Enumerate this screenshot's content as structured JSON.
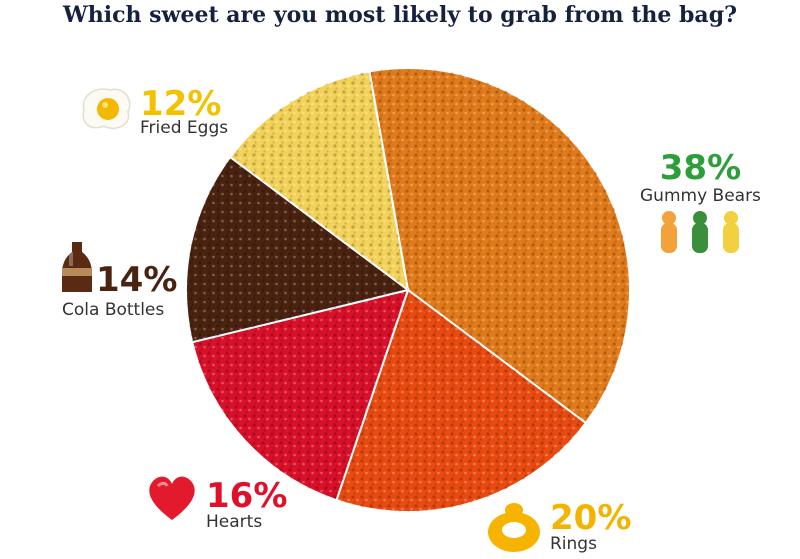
{
  "chart_data": {
    "type": "pie",
    "title": "Which sweet are you most likely to grab from the bag?",
    "slices": [
      {
        "label": "Gummy Bears",
        "value": 38,
        "display": "38%",
        "color": "#e07a1a"
      },
      {
        "label": "Rings",
        "value": 20,
        "display": "20%",
        "color": "#e84a10"
      },
      {
        "label": "Hearts",
        "value": 16,
        "display": "16%",
        "color": "#d8102a"
      },
      {
        "label": "Cola Bottles",
        "value": 14,
        "display": "14%",
        "color": "#4a2210"
      },
      {
        "label": "Fried Eggs",
        "value": 12,
        "display": "12%",
        "color": "#f3d25a"
      }
    ],
    "label_colors": {
      "Gummy Bears": "#2e9e3a",
      "Rings": "#f2b400",
      "Hearts": "#e0102a",
      "Cola Bottles": "#4a2210",
      "Fried Eggs": "#f2c200"
    }
  }
}
